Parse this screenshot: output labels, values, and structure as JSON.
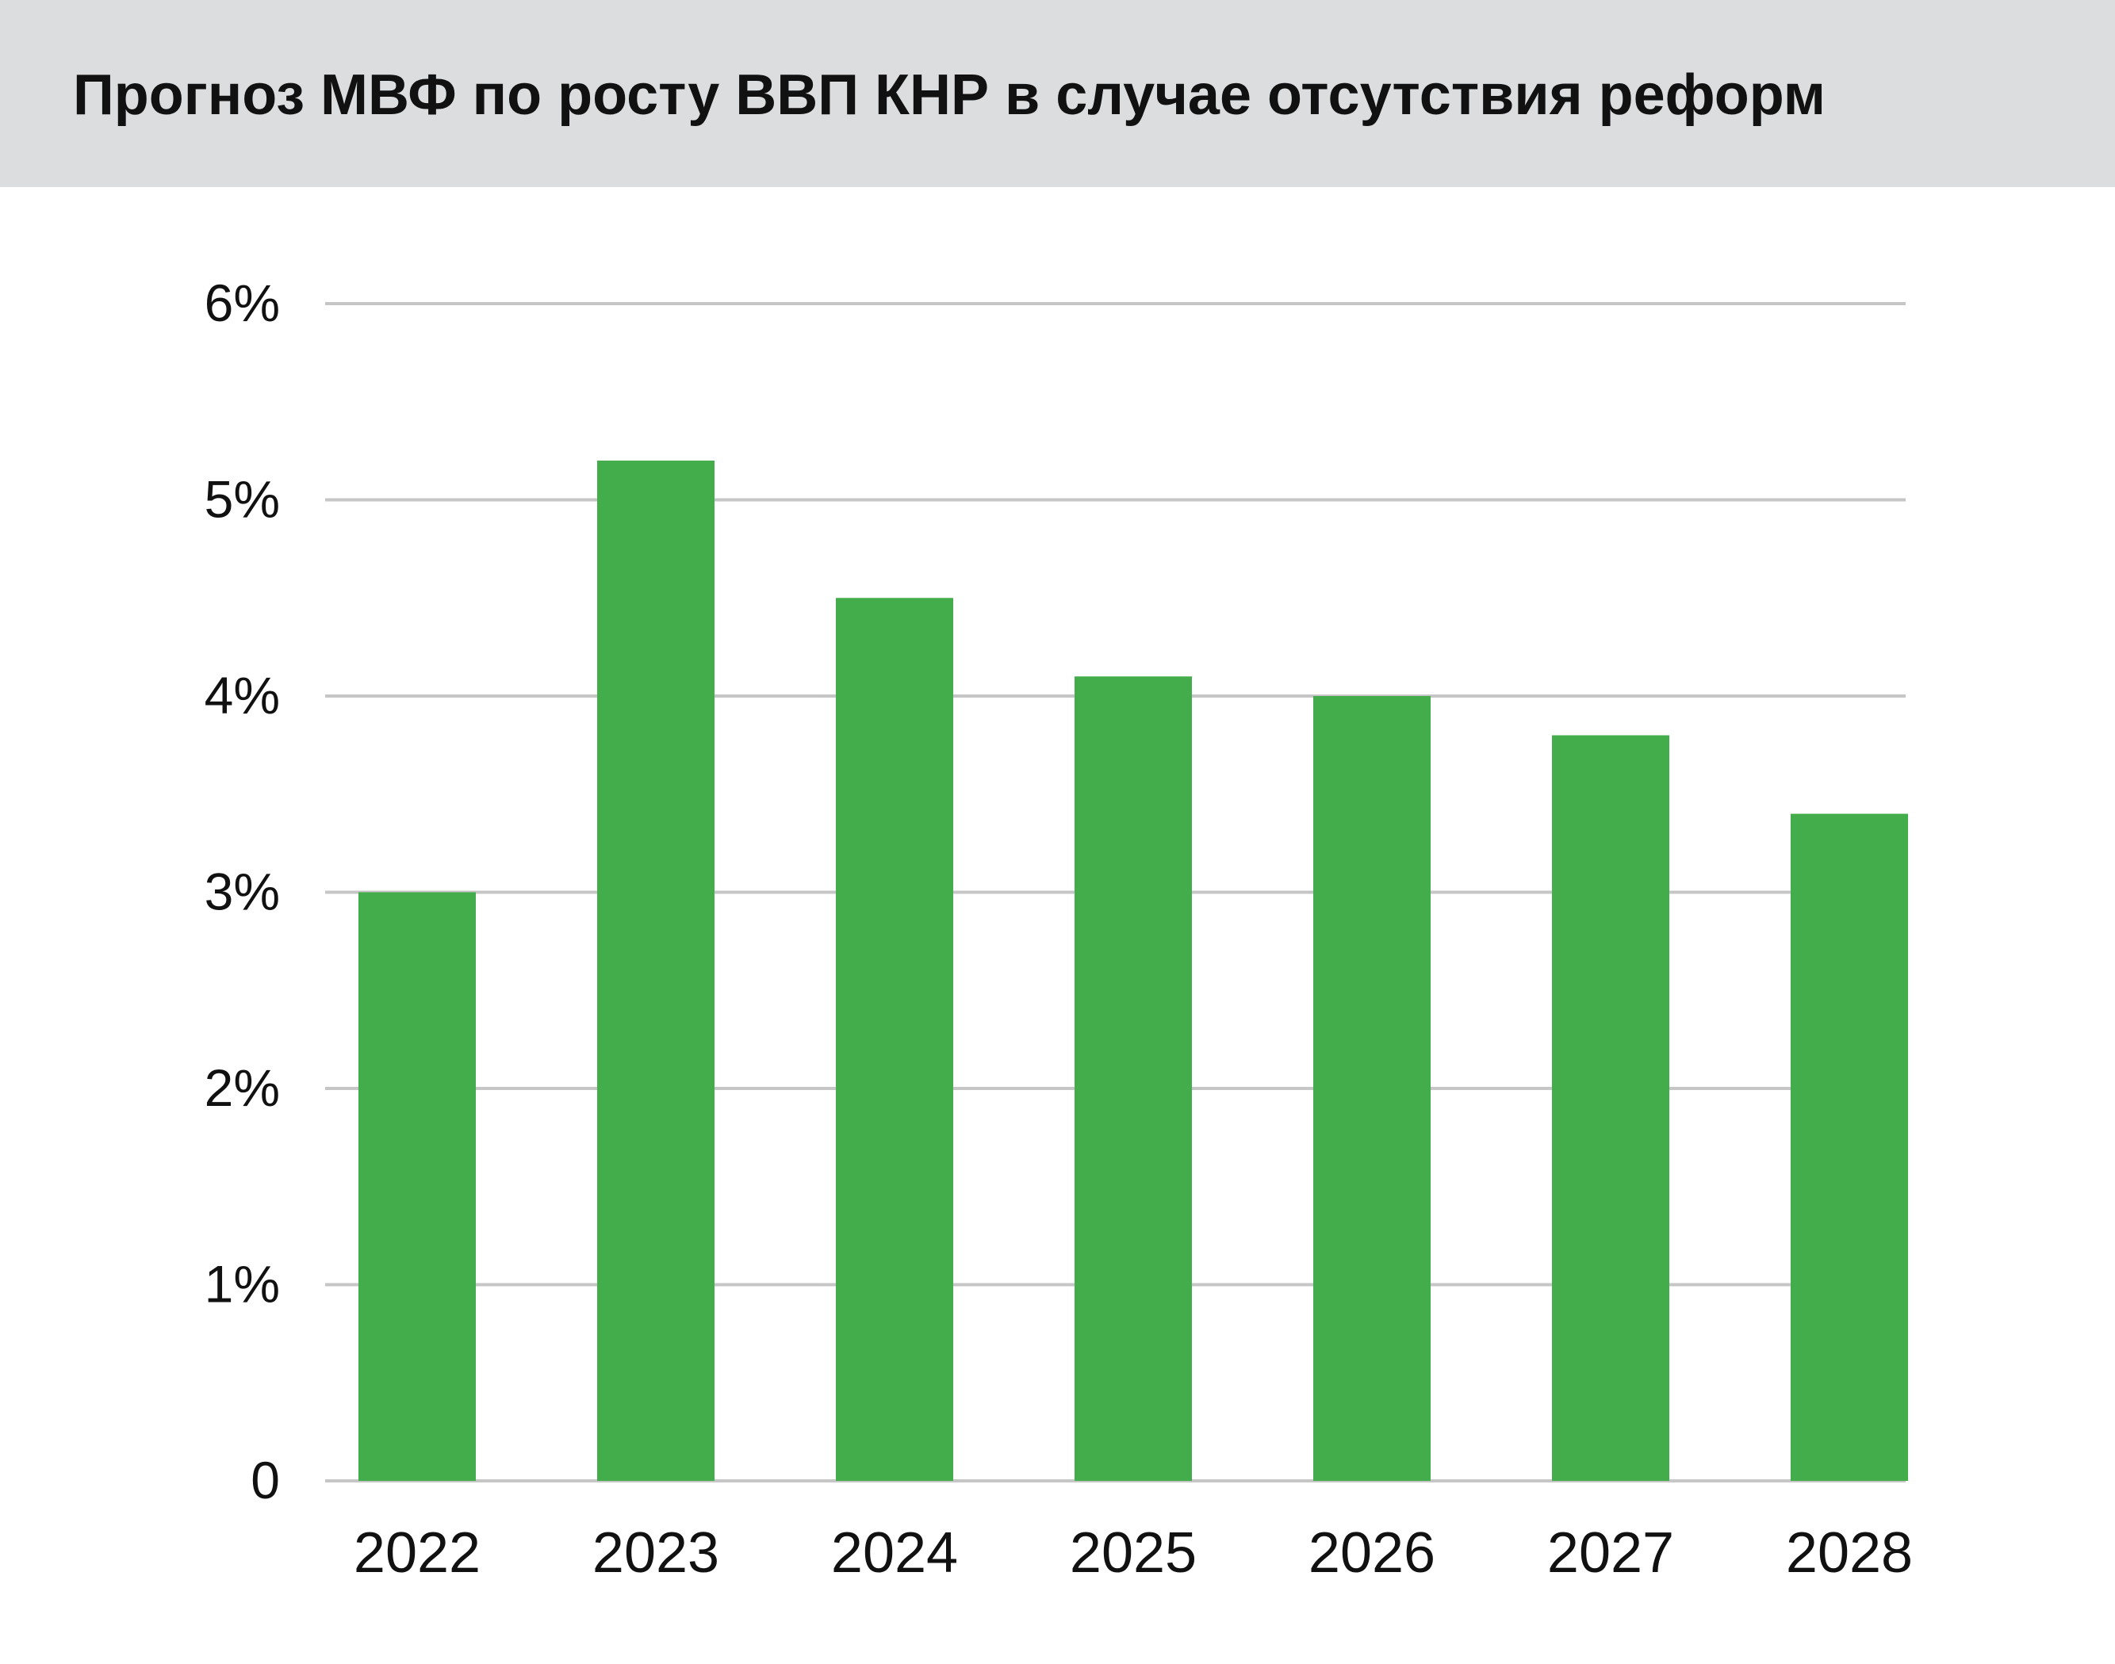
{
  "chart_data": {
    "type": "bar",
    "title": "Прогноз МВФ по росту ВВП КНР в случае отсутствия реформ",
    "categories": [
      "2022",
      "2023",
      "2024",
      "2025",
      "2026",
      "2027",
      "2028"
    ],
    "values": [
      3.0,
      5.2,
      4.5,
      4.1,
      4.0,
      3.8,
      3.4
    ],
    "ylim": [
      0,
      6
    ],
    "yticks": [
      {
        "value": 0,
        "label": "0"
      },
      {
        "value": 1,
        "label": "1%"
      },
      {
        "value": 2,
        "label": "2%"
      },
      {
        "value": 3,
        "label": "3%"
      },
      {
        "value": 4,
        "label": "4%"
      },
      {
        "value": 5,
        "label": "5%"
      },
      {
        "value": 6,
        "label": "6%"
      }
    ],
    "xlabel": "",
    "ylabel": "",
    "grid": true,
    "legend": "none",
    "colors": {
      "bar": "#43ad4b",
      "grid": "#c6c6c6",
      "header_background": "#dcdddf",
      "text": "#111111"
    }
  }
}
